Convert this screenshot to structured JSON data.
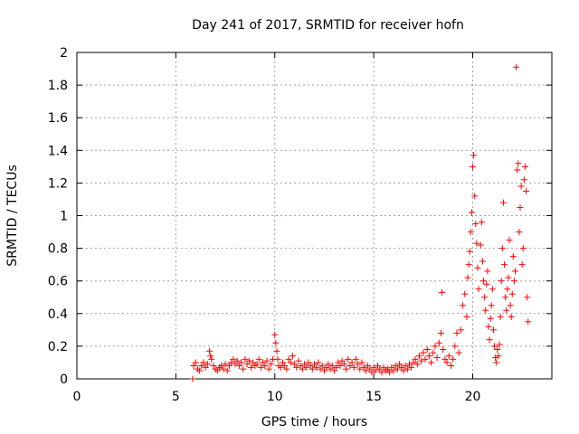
{
  "chart_data": {
    "type": "scatter",
    "title": "Day 241 of 2017, SRMTID for receiver hofn",
    "xlabel": "GPS time / hours",
    "ylabel": "SRMTID / TECUs",
    "xlim": [
      0,
      24
    ],
    "ylim": [
      0,
      2
    ],
    "x_ticks": [
      0,
      5,
      10,
      15,
      20
    ],
    "y_ticks": [
      0,
      0.2,
      0.4,
      0.6,
      0.8,
      1,
      1.2,
      1.4,
      1.6,
      1.8,
      2
    ],
    "x_tick_labels": [
      "0",
      "5",
      "10",
      "15",
      "20"
    ],
    "y_tick_labels": [
      "0",
      "0.2",
      "0.4",
      "0.6",
      "0.8",
      "1",
      "1.2",
      "1.4",
      "1.6",
      "1.8",
      "2"
    ],
    "grid": true,
    "marker": "+",
    "color": "#ff0000",
    "series": [
      {
        "points": [
          [
            5.85,
            0.0
          ],
          [
            5.9,
            0.08
          ],
          [
            6.0,
            0.1
          ],
          [
            6.1,
            0.06
          ],
          [
            6.2,
            0.05
          ],
          [
            6.3,
            0.08
          ],
          [
            6.4,
            0.1
          ],
          [
            6.5,
            0.07
          ],
          [
            6.6,
            0.09
          ],
          [
            6.7,
            0.17
          ],
          [
            6.75,
            0.14
          ],
          [
            6.8,
            0.12
          ],
          [
            6.9,
            0.08
          ],
          [
            7.0,
            0.06
          ],
          [
            7.1,
            0.05
          ],
          [
            7.2,
            0.07
          ],
          [
            7.3,
            0.08
          ],
          [
            7.4,
            0.06
          ],
          [
            7.5,
            0.09
          ],
          [
            7.6,
            0.05
          ],
          [
            7.7,
            0.08
          ],
          [
            7.8,
            0.1
          ],
          [
            7.9,
            0.12
          ],
          [
            8.0,
            0.09
          ],
          [
            8.1,
            0.11
          ],
          [
            8.2,
            0.08
          ],
          [
            8.3,
            0.1
          ],
          [
            8.4,
            0.06
          ],
          [
            8.5,
            0.12
          ],
          [
            8.6,
            0.09
          ],
          [
            8.7,
            0.11
          ],
          [
            8.8,
            0.07
          ],
          [
            8.9,
            0.1
          ],
          [
            9.0,
            0.08
          ],
          [
            9.1,
            0.09
          ],
          [
            9.2,
            0.12
          ],
          [
            9.3,
            0.07
          ],
          [
            9.4,
            0.1
          ],
          [
            9.5,
            0.08
          ],
          [
            9.6,
            0.11
          ],
          [
            9.7,
            0.06
          ],
          [
            9.8,
            0.09
          ],
          [
            9.9,
            0.12
          ],
          [
            10.0,
            0.27
          ],
          [
            10.05,
            0.22
          ],
          [
            10.1,
            0.17
          ],
          [
            10.15,
            0.12
          ],
          [
            10.2,
            0.08
          ],
          [
            10.3,
            0.07
          ],
          [
            10.4,
            0.1
          ],
          [
            10.5,
            0.08
          ],
          [
            10.6,
            0.06
          ],
          [
            10.7,
            0.12
          ],
          [
            10.8,
            0.1
          ],
          [
            10.9,
            0.14
          ],
          [
            11.0,
            0.09
          ],
          [
            11.1,
            0.07
          ],
          [
            11.2,
            0.11
          ],
          [
            11.3,
            0.08
          ],
          [
            11.4,
            0.06
          ],
          [
            11.5,
            0.09
          ],
          [
            11.6,
            0.07
          ],
          [
            11.7,
            0.1
          ],
          [
            11.8,
            0.08
          ],
          [
            11.9,
            0.06
          ],
          [
            12.0,
            0.09
          ],
          [
            12.1,
            0.07
          ],
          [
            12.2,
            0.1
          ],
          [
            12.3,
            0.06
          ],
          [
            12.4,
            0.08
          ],
          [
            12.5,
            0.05
          ],
          [
            12.6,
            0.07
          ],
          [
            12.7,
            0.09
          ],
          [
            12.8,
            0.06
          ],
          [
            12.9,
            0.08
          ],
          [
            13.0,
            0.05
          ],
          [
            13.1,
            0.07
          ],
          [
            13.2,
            0.1
          ],
          [
            13.3,
            0.08
          ],
          [
            13.4,
            0.11
          ],
          [
            13.5,
            0.09
          ],
          [
            13.6,
            0.06
          ],
          [
            13.7,
            0.12
          ],
          [
            13.8,
            0.08
          ],
          [
            13.9,
            0.1
          ],
          [
            14.0,
            0.07
          ],
          [
            14.1,
            0.12
          ],
          [
            14.2,
            0.09
          ],
          [
            14.3,
            0.06
          ],
          [
            14.4,
            0.1
          ],
          [
            14.5,
            0.07
          ],
          [
            14.6,
            0.05
          ],
          [
            14.7,
            0.08
          ],
          [
            14.8,
            0.06
          ],
          [
            14.9,
            0.04
          ],
          [
            15.0,
            0.07
          ],
          [
            15.1,
            0.05
          ],
          [
            15.2,
            0.08
          ],
          [
            15.3,
            0.06
          ],
          [
            15.4,
            0.04
          ],
          [
            15.5,
            0.07
          ],
          [
            15.6,
            0.05
          ],
          [
            15.7,
            0.06
          ],
          [
            15.8,
            0.04
          ],
          [
            15.9,
            0.07
          ],
          [
            16.0,
            0.05
          ],
          [
            16.1,
            0.08
          ],
          [
            16.2,
            0.06
          ],
          [
            16.3,
            0.09
          ],
          [
            16.4,
            0.07
          ],
          [
            16.5,
            0.05
          ],
          [
            16.6,
            0.08
          ],
          [
            16.7,
            0.06
          ],
          [
            16.8,
            0.09
          ],
          [
            16.9,
            0.07
          ],
          [
            17.0,
            0.1
          ],
          [
            17.1,
            0.12
          ],
          [
            17.2,
            0.09
          ],
          [
            17.3,
            0.14
          ],
          [
            17.4,
            0.11
          ],
          [
            17.5,
            0.16
          ],
          [
            17.6,
            0.12
          ],
          [
            17.7,
            0.18
          ],
          [
            17.8,
            0.14
          ],
          [
            17.9,
            0.1
          ],
          [
            18.0,
            0.16
          ],
          [
            18.1,
            0.2
          ],
          [
            18.2,
            0.13
          ],
          [
            18.3,
            0.22
          ],
          [
            18.4,
            0.28
          ],
          [
            18.45,
            0.53
          ],
          [
            18.5,
            0.18
          ],
          [
            18.6,
            0.12
          ],
          [
            18.7,
            0.1
          ],
          [
            18.8,
            0.14
          ],
          [
            18.9,
            0.08
          ],
          [
            19.0,
            0.12
          ],
          [
            19.1,
            0.2
          ],
          [
            19.2,
            0.28
          ],
          [
            19.3,
            0.16
          ],
          [
            19.4,
            0.3
          ],
          [
            19.5,
            0.45
          ],
          [
            19.6,
            0.52
          ],
          [
            19.7,
            0.38
          ],
          [
            19.75,
            0.62
          ],
          [
            19.8,
            0.7
          ],
          [
            19.85,
            0.78
          ],
          [
            19.9,
            0.9
          ],
          [
            19.95,
            1.02
          ],
          [
            20.0,
            1.3
          ],
          [
            20.05,
            1.37
          ],
          [
            20.1,
            1.12
          ],
          [
            20.15,
            0.95
          ],
          [
            20.2,
            0.83
          ],
          [
            20.25,
            0.68
          ],
          [
            20.3,
            0.55
          ],
          [
            20.4,
            0.82
          ],
          [
            20.45,
            0.96
          ],
          [
            20.5,
            0.72
          ],
          [
            20.55,
            0.6
          ],
          [
            20.6,
            0.5
          ],
          [
            20.65,
            0.42
          ],
          [
            20.7,
            0.58
          ],
          [
            20.75,
            0.66
          ],
          [
            20.8,
            0.32
          ],
          [
            20.85,
            0.24
          ],
          [
            20.9,
            0.37
          ],
          [
            20.95,
            0.45
          ],
          [
            21.0,
            0.55
          ],
          [
            21.05,
            0.3
          ],
          [
            21.1,
            0.2
          ],
          [
            21.15,
            0.13
          ],
          [
            21.2,
            0.1
          ],
          [
            21.25,
            0.18
          ],
          [
            21.3,
            0.14
          ],
          [
            21.35,
            0.21
          ],
          [
            21.4,
            0.38
          ],
          [
            21.45,
            0.6
          ],
          [
            21.5,
            0.8
          ],
          [
            21.55,
            1.08
          ],
          [
            21.6,
            0.7
          ],
          [
            21.65,
            0.5
          ],
          [
            21.7,
            0.42
          ],
          [
            21.75,
            0.55
          ],
          [
            21.8,
            0.62
          ],
          [
            21.85,
            0.85
          ],
          [
            21.9,
            0.45
          ],
          [
            21.95,
            0.38
          ],
          [
            22.0,
            0.52
          ],
          [
            22.05,
            0.75
          ],
          [
            22.1,
            0.6
          ],
          [
            22.15,
            0.66
          ],
          [
            22.2,
            1.91
          ],
          [
            22.25,
            1.28
          ],
          [
            22.3,
            1.32
          ],
          [
            22.35,
            0.9
          ],
          [
            22.4,
            1.05
          ],
          [
            22.45,
            1.18
          ],
          [
            22.5,
            0.7
          ],
          [
            22.55,
            0.8
          ],
          [
            22.6,
            1.22
          ],
          [
            22.65,
            1.3
          ],
          [
            22.7,
            1.15
          ],
          [
            22.75,
            0.5
          ],
          [
            22.8,
            0.35
          ]
        ]
      }
    ]
  }
}
